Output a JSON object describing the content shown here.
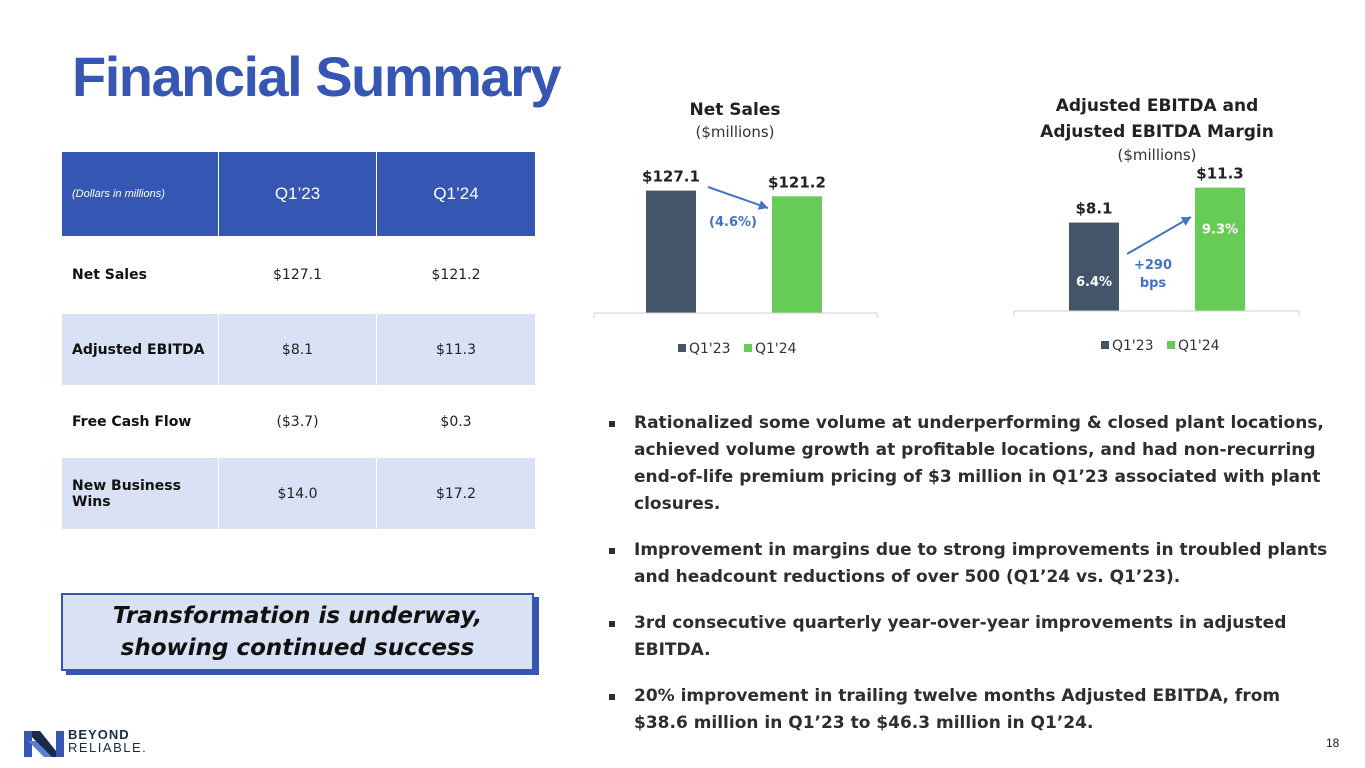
{
  "title": "Financial Summary",
  "table": {
    "unit_label": "(Dollars in millions)",
    "columns": [
      "Q1’23",
      "Q1’24"
    ],
    "rows": [
      {
        "label": "Net Sales",
        "q1_23": "$127.1",
        "q1_24": "$121.2"
      },
      {
        "label": "Adjusted EBITDA",
        "q1_23": "$8.1",
        "q1_24": "$11.3"
      },
      {
        "label": "Free Cash Flow",
        "q1_23": "($3.7)",
        "q1_24": "$0.3"
      },
      {
        "label": "New Business Wins",
        "q1_23": "$14.0",
        "q1_24": "$17.2"
      }
    ]
  },
  "callout": {
    "line1": "Transformation is underway,",
    "line2": "showing continued success"
  },
  "chart_data": [
    {
      "type": "bar",
      "title": "Net Sales",
      "subtitle": "($millions)",
      "categories": [
        "Q1'23",
        "Q1'24"
      ],
      "values": [
        127.1,
        121.2
      ],
      "data_labels": [
        "$127.1",
        "$121.2"
      ],
      "annotation": "(4.6%)",
      "ylim": [
        0,
        135
      ],
      "legend": "bottom",
      "colors": [
        "#44546a",
        "#66cc55"
      ]
    },
    {
      "type": "bar",
      "title_line1": "Adjusted EBITDA and",
      "title_line2": "Adjusted EBITDA Margin",
      "subtitle": "($millions)",
      "categories": [
        "Q1'23",
        "Q1'24"
      ],
      "values": [
        8.1,
        11.3
      ],
      "data_labels": [
        "$8.1",
        "$11.3"
      ],
      "margins": [
        "6.4%",
        "9.3%"
      ],
      "annotation_line1": "+290",
      "annotation_line2": "bps",
      "ylim": [
        0,
        12
      ],
      "legend": "bottom",
      "colors": [
        "#44546a",
        "#66cc55"
      ]
    }
  ],
  "bullets": [
    "Rationalized some volume at underperforming & closed plant locations, achieved volume growth at profitable locations, and had non-recurring end-of-life premium pricing of $3 million in Q1’23 associated with plant closures.",
    "Improvement in margins due to strong improvements in troubled plants and headcount reductions of over 500 (Q1’24 vs. Q1’23).",
    "3rd consecutive quarterly year-over-year improvements in adjusted EBITDA.",
    "20% improvement in trailing twelve months Adjusted EBITDA, from $38.6 million in Q1’23 to $46.3 million in Q1’24."
  ],
  "logo": {
    "line1": "BEYOND",
    "line2": "RELIABLE."
  },
  "page_number": "18",
  "colors": {
    "brand_blue": "#3556b2",
    "light_blue": "#d9e2f5",
    "arrow_blue": "#4472c4",
    "bar_dark": "#44546a",
    "bar_green": "#66cc55"
  }
}
